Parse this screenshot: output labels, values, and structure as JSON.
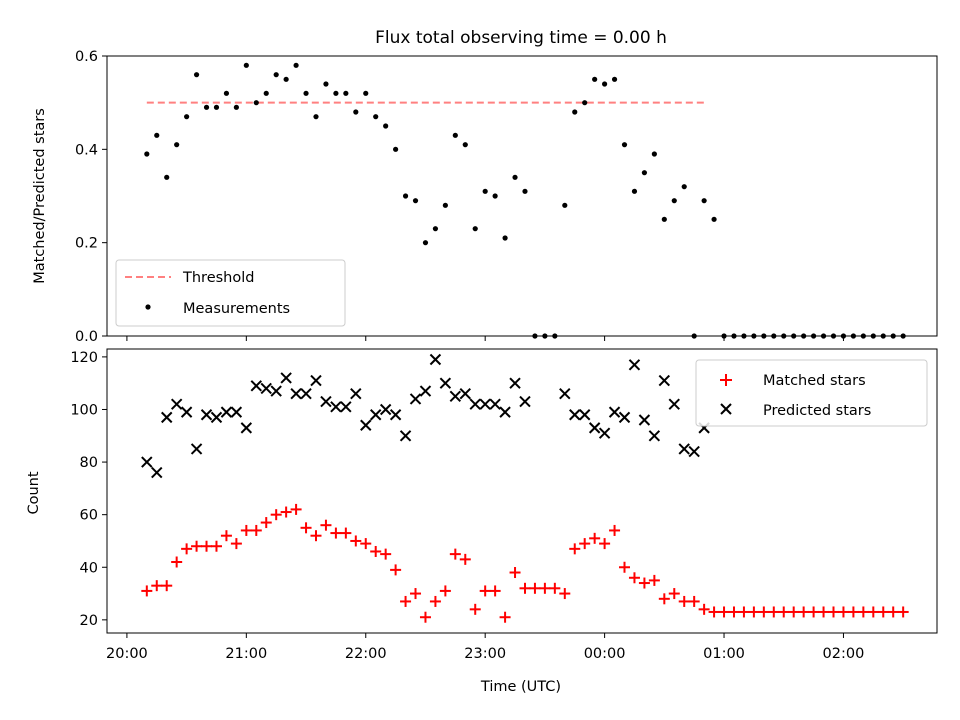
{
  "title": "Flux total observing time = 0.00 h",
  "xlabel": "Time (UTC)",
  "x_ticks": [
    "20:00",
    "21:00",
    "22:00",
    "23:00",
    "00:00",
    "01:00",
    "02:00"
  ],
  "chart_data": [
    {
      "type": "scatter",
      "ylabel": "Matched/Predicted stars",
      "ylim": [
        0,
        0.6
      ],
      "y_ticks": [
        "0.0",
        "0.2",
        "0.4",
        "0.6"
      ],
      "legend_position": "lower-left",
      "threshold": {
        "name": "Threshold",
        "value": 0.5,
        "x_range": [
          "20:10",
          "24:50"
        ],
        "color": "#ff8080"
      },
      "series": [
        {
          "name": "Measurements",
          "color": "#000000",
          "x": [
            "20:10",
            "20:15",
            "20:20",
            "20:25",
            "20:30",
            "20:35",
            "20:40",
            "20:45",
            "20:50",
            "20:55",
            "21:00",
            "21:05",
            "21:10",
            "21:15",
            "21:20",
            "21:25",
            "21:30",
            "21:35",
            "21:40",
            "21:45",
            "21:50",
            "21:55",
            "22:00",
            "22:05",
            "22:10",
            "22:15",
            "22:20",
            "22:25",
            "22:30",
            "22:35",
            "22:40",
            "22:45",
            "22:50",
            "22:55",
            "23:00",
            "23:05",
            "23:10",
            "23:15",
            "23:20",
            "23:25",
            "23:30",
            "23:35",
            "23:40",
            "23:45",
            "23:50",
            "23:55",
            "24:00",
            "24:05",
            "24:10",
            "24:15",
            "24:20",
            "24:25",
            "24:30",
            "24:35",
            "24:40",
            "24:45",
            "24:50",
            "24:55",
            "25:00",
            "25:05",
            "25:10",
            "25:15",
            "25:20",
            "25:25",
            "25:30",
            "25:35",
            "25:40",
            "25:45",
            "25:50",
            "25:55",
            "26:00",
            "26:05",
            "26:10",
            "26:15",
            "26:20",
            "26:25",
            "26:30"
          ],
          "y": [
            0.39,
            0.43,
            0.34,
            0.41,
            0.47,
            0.56,
            0.49,
            0.49,
            0.52,
            0.49,
            0.58,
            0.5,
            0.52,
            0.56,
            0.55,
            0.58,
            0.52,
            0.47,
            0.54,
            0.52,
            0.52,
            0.48,
            0.52,
            0.47,
            0.45,
            0.4,
            0.3,
            0.29,
            0.2,
            0.23,
            0.28,
            0.43,
            0.41,
            0.23,
            0.31,
            0.3,
            0.21,
            0.34,
            0.31,
            0.0,
            0.0,
            0.0,
            0.28,
            0.48,
            0.5,
            0.55,
            0.54,
            0.55,
            0.41,
            0.31,
            0.35,
            0.39,
            0.25,
            0.29,
            0.32,
            0.0,
            0.29,
            0.25,
            0.0,
            0.0,
            0.0,
            0.0,
            0.0,
            0.0,
            0.0,
            0.0,
            0.0,
            0.0,
            0.0,
            0.0,
            0.0,
            0.0,
            0.0,
            0.0,
            0.0,
            0.0,
            0.0
          ]
        }
      ]
    },
    {
      "type": "scatter",
      "ylabel": "Count",
      "ylim": [
        15,
        123
      ],
      "y_ticks": [
        "20",
        "40",
        "60",
        "80",
        "100",
        "120"
      ],
      "legend_position": "upper-right",
      "series": [
        {
          "name": "Matched stars",
          "color": "#ff0000",
          "marker": "+",
          "x": [
            "20:10",
            "20:15",
            "20:20",
            "20:25",
            "20:30",
            "20:35",
            "20:40",
            "20:45",
            "20:50",
            "20:55",
            "21:00",
            "21:05",
            "21:10",
            "21:15",
            "21:20",
            "21:25",
            "21:30",
            "21:35",
            "21:40",
            "21:45",
            "21:50",
            "21:55",
            "22:00",
            "22:05",
            "22:10",
            "22:15",
            "22:20",
            "22:25",
            "22:30",
            "22:35",
            "22:40",
            "22:45",
            "22:50",
            "22:55",
            "23:00",
            "23:05",
            "23:10",
            "23:15",
            "23:20",
            "23:25",
            "23:30",
            "23:35",
            "23:40",
            "23:45",
            "23:50",
            "23:55",
            "24:00",
            "24:05",
            "24:10",
            "24:15",
            "24:20",
            "24:25",
            "24:30",
            "24:35",
            "24:40",
            "24:45",
            "24:50",
            "24:55",
            "25:00",
            "25:05",
            "25:10",
            "25:15",
            "25:20",
            "25:25",
            "25:30",
            "25:35",
            "25:40",
            "25:45",
            "25:50",
            "25:55",
            "26:00",
            "26:05",
            "26:10",
            "26:15",
            "26:20",
            "26:25",
            "26:30"
          ],
          "y": [
            31,
            33,
            33,
            42,
            47,
            48,
            48,
            48,
            52,
            49,
            54,
            54,
            57,
            60,
            61,
            62,
            55,
            52,
            56,
            53,
            53,
            50,
            49,
            46,
            45,
            39,
            27,
            30,
            21,
            27,
            31,
            45,
            43,
            24,
            31,
            31,
            21,
            38,
            32,
            32,
            32,
            32,
            30,
            47,
            49,
            51,
            49,
            54,
            40,
            36,
            34,
            35,
            28,
            30,
            27,
            27,
            24,
            23,
            23,
            23,
            23,
            23,
            23,
            23,
            23,
            23,
            23,
            23,
            23,
            23,
            23,
            23,
            23,
            23,
            23,
            23,
            23
          ]
        },
        {
          "name": "Predicted stars",
          "color": "#000000",
          "marker": "x",
          "x": [
            "20:10",
            "20:15",
            "20:20",
            "20:25",
            "20:30",
            "20:35",
            "20:40",
            "20:45",
            "20:50",
            "20:55",
            "21:00",
            "21:05",
            "21:10",
            "21:15",
            "21:20",
            "21:25",
            "21:30",
            "21:35",
            "21:40",
            "21:45",
            "21:50",
            "21:55",
            "22:00",
            "22:05",
            "22:10",
            "22:15",
            "22:20",
            "22:25",
            "22:30",
            "22:35",
            "22:40",
            "22:45",
            "22:50",
            "22:55",
            "23:00",
            "23:05",
            "23:10",
            "23:15",
            "23:20",
            "23:40",
            "23:45",
            "23:50",
            "23:55",
            "24:00",
            "24:05",
            "24:10",
            "24:15",
            "24:20",
            "24:25",
            "24:30",
            "24:35",
            "24:40",
            "24:45",
            "24:50"
          ],
          "y": [
            80,
            76,
            97,
            102,
            99,
            85,
            98,
            97,
            99,
            99,
            93,
            109,
            108,
            107,
            112,
            106,
            106,
            111,
            103,
            101,
            101,
            106,
            94,
            98,
            100,
            98,
            90,
            104,
            107,
            119,
            110,
            105,
            106,
            102,
            102,
            102,
            99,
            110,
            103,
            106,
            98,
            98,
            93,
            91,
            99,
            97,
            117,
            96,
            90,
            111,
            102,
            85,
            84,
            93
          ]
        }
      ]
    }
  ]
}
